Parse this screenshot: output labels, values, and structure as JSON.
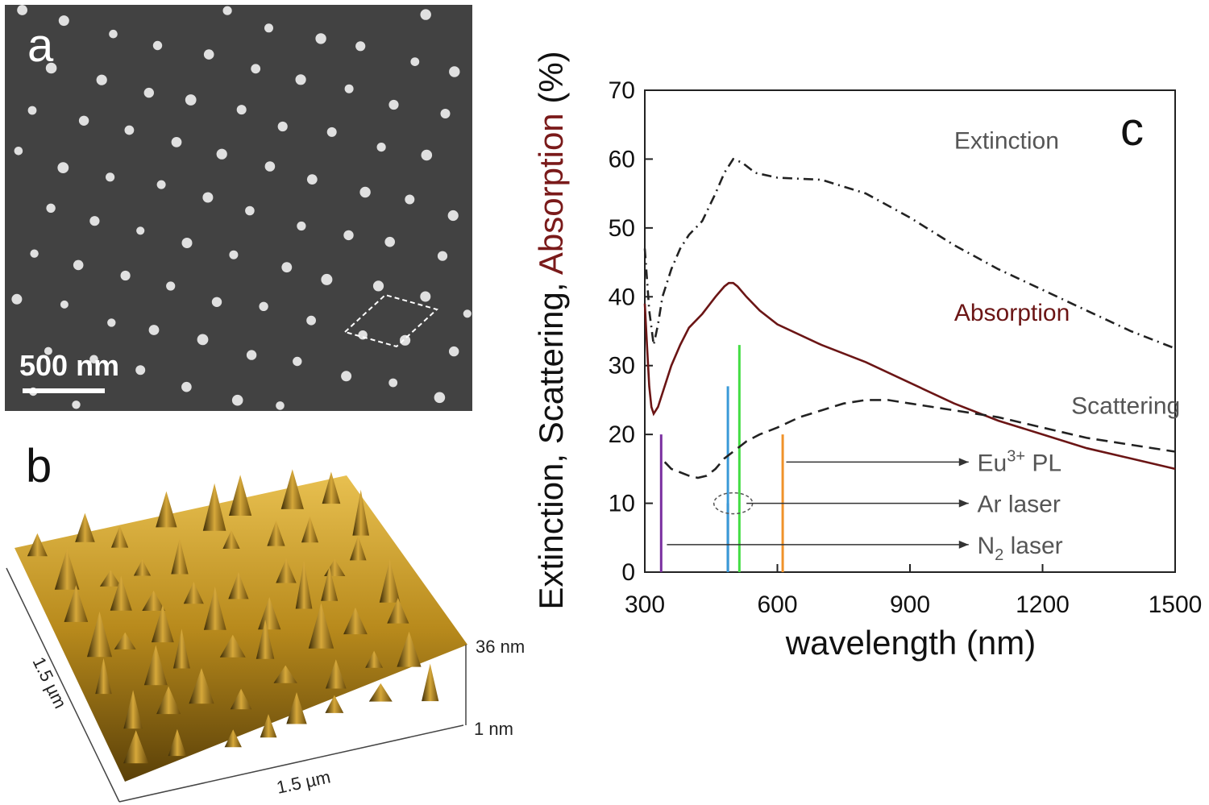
{
  "panels": {
    "a": {
      "label": "a",
      "scalebar": "500 nm"
    },
    "b": {
      "label": "b",
      "z_max": "36 nm",
      "z_min": "1 nm",
      "x_size": "1.5 µm",
      "y_size": "1.5 µm"
    },
    "c": {
      "label": "c"
    }
  },
  "chart_data": {
    "type": "line",
    "xlabel": "wavelength (nm)",
    "ylabel_parts": [
      "Extinction, Scattering, ",
      "Absorption",
      " (%)"
    ],
    "xlim": [
      300,
      1500
    ],
    "ylim": [
      0,
      70
    ],
    "xticks": [
      300,
      600,
      900,
      1200,
      1500
    ],
    "yticks": [
      0,
      10,
      20,
      30,
      40,
      50,
      60,
      70
    ],
    "grid": false,
    "colors": {
      "absorption": "#6b1515",
      "extinction": "#222222",
      "scattering": "#222222",
      "label_gray": "#555555"
    },
    "series": [
      {
        "name": "Extinction",
        "style": "dash-dot",
        "x": [
          300,
          310,
          320,
          330,
          340,
          360,
          380,
          400,
          430,
          460,
          480,
          500,
          520,
          550,
          600,
          700,
          800,
          900,
          1000,
          1100,
          1200,
          1300,
          1400,
          1500
        ],
        "y": [
          47,
          38,
          33,
          36,
          40,
          44,
          47,
          49,
          51,
          55,
          58,
          60,
          59.5,
          58,
          57.3,
          57,
          55,
          51.5,
          47.5,
          44,
          41,
          38,
          35,
          32.5
        ]
      },
      {
        "name": "Absorption",
        "style": "solid",
        "x": [
          300,
          305,
          310,
          315,
          320,
          330,
          340,
          360,
          380,
          400,
          430,
          460,
          480,
          490,
          500,
          510,
          530,
          560,
          600,
          700,
          800,
          900,
          1000,
          1100,
          1200,
          1300,
          1400,
          1500
        ],
        "y": [
          39,
          33,
          27,
          24,
          23,
          24,
          26,
          30,
          33,
          35.5,
          37.5,
          40,
          41.5,
          42,
          42,
          41.5,
          40,
          38,
          36,
          33,
          30.5,
          27.5,
          24.5,
          22,
          20,
          18,
          16.5,
          15
        ]
      },
      {
        "name": "Scattering",
        "style": "dashed",
        "x": [
          345,
          360,
          380,
          400,
          420,
          440,
          460,
          480,
          500,
          530,
          560,
          600,
          650,
          700,
          750,
          800,
          850,
          900,
          1000,
          1100,
          1200,
          1300,
          1400,
          1500
        ],
        "y": [
          16,
          15,
          14.5,
          14,
          13.7,
          14,
          15,
          16.5,
          17.5,
          19,
          20,
          21,
          22.5,
          23.5,
          24.5,
          25,
          25,
          24.5,
          23.5,
          22.5,
          21,
          19.5,
          18.5,
          17.5
        ]
      }
    ],
    "series_labels": {
      "extinction": {
        "text": "Extinction",
        "x": 1000,
        "y": 61.5
      },
      "absorption": {
        "text": "Absorption",
        "x": 1000,
        "y": 36.5
      },
      "scattering": {
        "text": "Scattering",
        "x": 1265,
        "y": 23
      }
    },
    "laser_lines": [
      {
        "x": 337,
        "height": 20,
        "color": "#7a2fa0"
      },
      {
        "x": 488,
        "height": 10,
        "color": "#1a2a7a"
      },
      {
        "x": 488,
        "height": 27,
        "color": "#3a9ad8"
      },
      {
        "x": 514,
        "height": 33,
        "color": "#44dd44"
      },
      {
        "x": 612,
        "height": 20,
        "color": "#f0922a"
      }
    ],
    "annotations": [
      {
        "base": "Eu",
        "sup": "3+",
        "rest": " PL",
        "text_x": 1045,
        "y": 16,
        "arrow_from": 620,
        "arrow_to": 1040
      },
      {
        "base": "Ar laser",
        "sup": "",
        "rest": "",
        "text_x": 1045,
        "y": 10,
        "arrow_from": 530,
        "arrow_to": 1040
      },
      {
        "base": "N",
        "sub": "2",
        "rest": " laser",
        "text_x": 1045,
        "y": 4,
        "arrow_from": 350,
        "arrow_to": 1040
      }
    ]
  }
}
